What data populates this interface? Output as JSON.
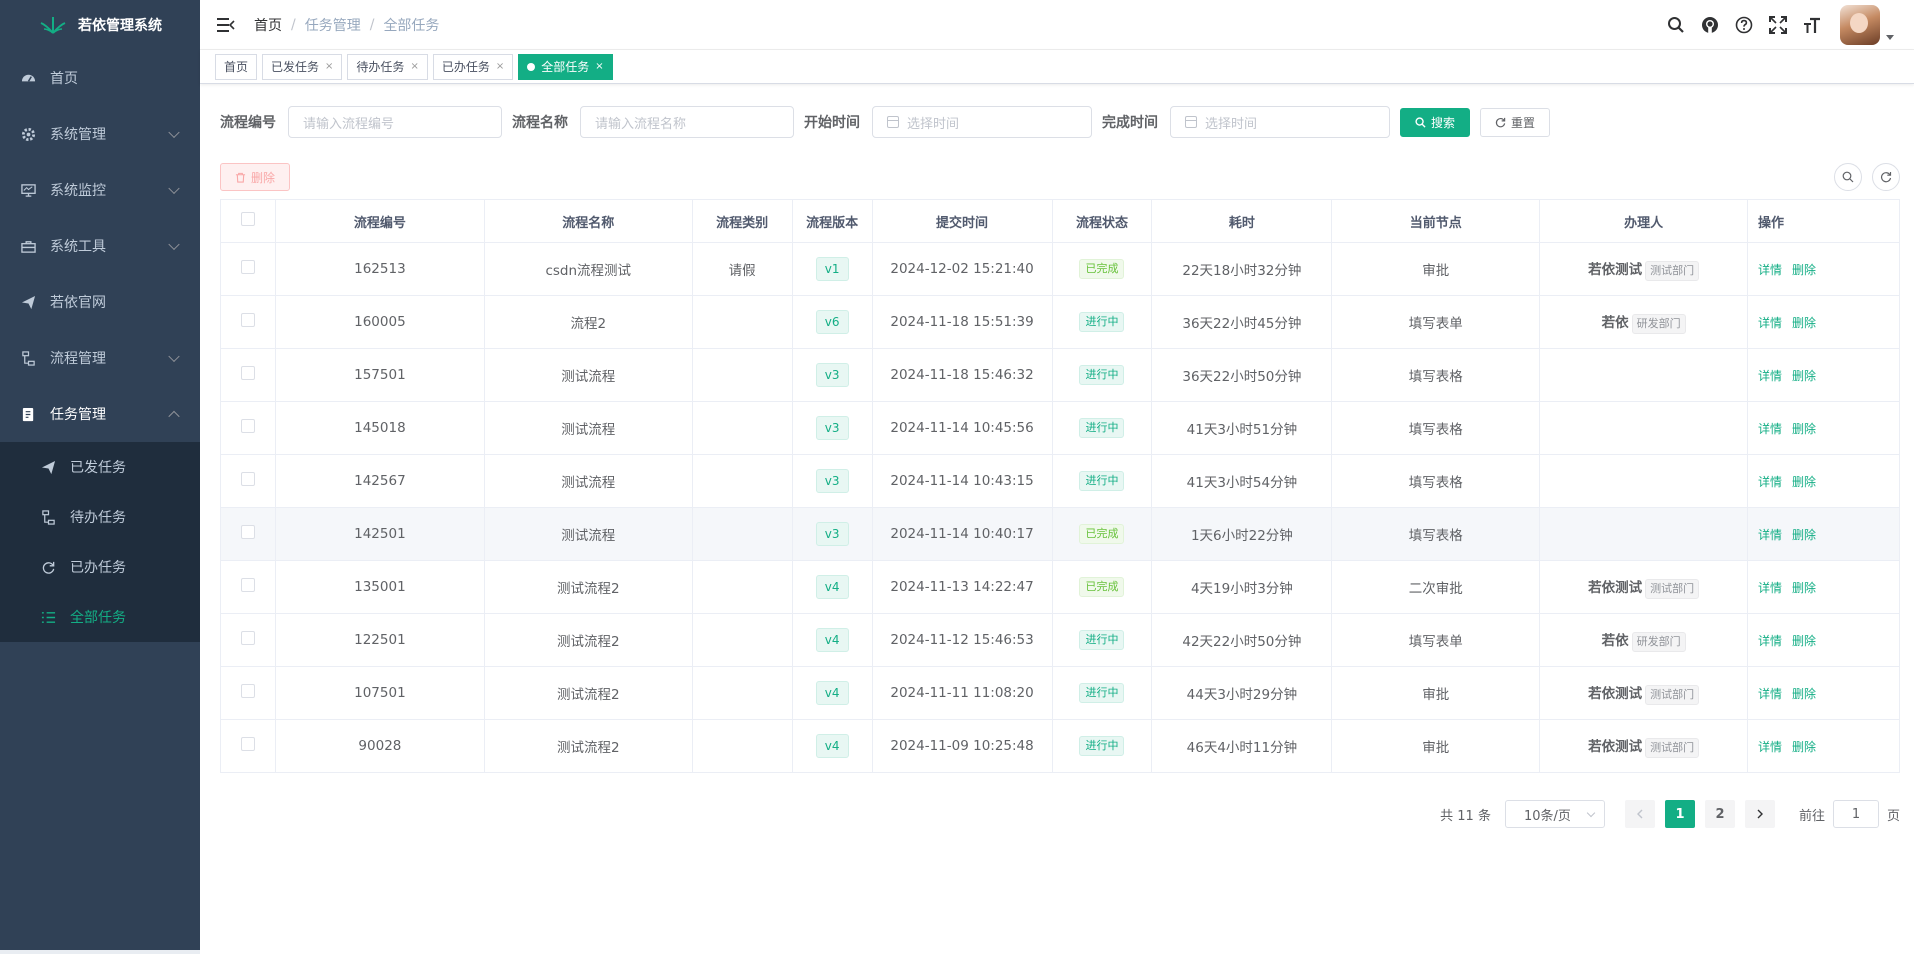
{
  "app": {
    "title": "若依管理系统"
  },
  "sidebar": {
    "items": [
      {
        "label": "首页",
        "icon": "dashboard-icon",
        "expandable": false
      },
      {
        "label": "系统管理",
        "icon": "gear-icon",
        "expandable": true
      },
      {
        "label": "系统监控",
        "icon": "monitor-icon",
        "expandable": true
      },
      {
        "label": "系统工具",
        "icon": "toolbox-icon",
        "expandable": true
      },
      {
        "label": "若依官网",
        "icon": "send-icon",
        "expandable": false
      },
      {
        "label": "流程管理",
        "icon": "flow-icon",
        "expandable": true
      },
      {
        "label": "任务管理",
        "icon": "task-icon",
        "expandable": true,
        "expanded": true
      }
    ],
    "subitems": [
      {
        "label": "已发任务",
        "icon": "send-icon"
      },
      {
        "label": "待办任务",
        "icon": "flow-icon"
      },
      {
        "label": "已办任务",
        "icon": "refresh-icon"
      },
      {
        "label": "全部任务",
        "icon": "list-icon",
        "active": true
      }
    ]
  },
  "breadcrumb": [
    "首页",
    "任务管理",
    "全部任务"
  ],
  "tags": [
    {
      "label": "首页",
      "closable": false
    },
    {
      "label": "已发任务",
      "closable": true
    },
    {
      "label": "待办任务",
      "closable": true
    },
    {
      "label": "已办任务",
      "closable": true
    },
    {
      "label": "全部任务",
      "closable": true,
      "active": true
    }
  ],
  "search": {
    "proc_no_label": "流程编号",
    "proc_no_placeholder": "请输入流程编号",
    "proc_name_label": "流程名称",
    "proc_name_placeholder": "请输入流程名称",
    "start_label": "开始时间",
    "start_placeholder": "选择时间",
    "finish_label": "完成时间",
    "finish_placeholder": "选择时间",
    "search_btn": "搜索",
    "reset_btn": "重置"
  },
  "toolbar": {
    "delete_btn": "删除"
  },
  "table": {
    "columns": [
      "流程编号",
      "流程名称",
      "流程类别",
      "流程版本",
      "提交时间",
      "流程状态",
      "耗时",
      "当前节点",
      "办理人",
      "操作"
    ],
    "detail_label": "详情",
    "delete_label": "删除",
    "rows": [
      {
        "no": "162513",
        "name": "csdn流程测试",
        "category": "请假",
        "version": "v1",
        "time": "2024-12-02 15:21:40",
        "status": "已完成",
        "status_type": "done",
        "duration": "22天18小时32分钟",
        "node": "审批",
        "assignee": "若依测试",
        "dept": "测试部门"
      },
      {
        "no": "160005",
        "name": "流程2",
        "category": "",
        "version": "v6",
        "time": "2024-11-18 15:51:39",
        "status": "进行中",
        "status_type": "doing",
        "duration": "36天22小时45分钟",
        "node": "填写表单",
        "assignee": "若依",
        "dept": "研发部门"
      },
      {
        "no": "157501",
        "name": "测试流程",
        "category": "",
        "version": "v3",
        "time": "2024-11-18 15:46:32",
        "status": "进行中",
        "status_type": "doing",
        "duration": "36天22小时50分钟",
        "node": "填写表格",
        "assignee": "",
        "dept": ""
      },
      {
        "no": "145018",
        "name": "测试流程",
        "category": "",
        "version": "v3",
        "time": "2024-11-14 10:45:56",
        "status": "进行中",
        "status_type": "doing",
        "duration": "41天3小时51分钟",
        "node": "填写表格",
        "assignee": "",
        "dept": ""
      },
      {
        "no": "142567",
        "name": "测试流程",
        "category": "",
        "version": "v3",
        "time": "2024-11-14 10:43:15",
        "status": "进行中",
        "status_type": "doing",
        "duration": "41天3小时54分钟",
        "node": "填写表格",
        "assignee": "",
        "dept": ""
      },
      {
        "no": "142501",
        "name": "测试流程",
        "category": "",
        "version": "v3",
        "time": "2024-11-14 10:40:17",
        "status": "已完成",
        "status_type": "done",
        "duration": "1天6小时22分钟",
        "node": "填写表格",
        "assignee": "",
        "dept": "",
        "hover": true
      },
      {
        "no": "135001",
        "name": "测试流程2",
        "category": "",
        "version": "v4",
        "time": "2024-11-13 14:22:47",
        "status": "已完成",
        "status_type": "done",
        "duration": "4天19小时3分钟",
        "node": "二次审批",
        "assignee": "若依测试",
        "dept": "测试部门"
      },
      {
        "no": "122501",
        "name": "测试流程2",
        "category": "",
        "version": "v4",
        "time": "2024-11-12 15:46:53",
        "status": "进行中",
        "status_type": "doing",
        "duration": "42天22小时50分钟",
        "node": "填写表单",
        "assignee": "若依",
        "dept": "研发部门"
      },
      {
        "no": "107501",
        "name": "测试流程2",
        "category": "",
        "version": "v4",
        "time": "2024-11-11 11:08:20",
        "status": "进行中",
        "status_type": "doing",
        "duration": "44天3小时29分钟",
        "node": "审批",
        "assignee": "若依测试",
        "dept": "测试部门"
      },
      {
        "no": "90028",
        "name": "测试流程2",
        "category": "",
        "version": "v4",
        "time": "2024-11-09 10:25:48",
        "status": "进行中",
        "status_type": "doing",
        "duration": "46天4小时11分钟",
        "node": "审批",
        "assignee": "若依测试",
        "dept": "测试部门"
      }
    ]
  },
  "pagination": {
    "total": "共 11 条",
    "page_size": "10条/页",
    "pages": [
      "1",
      "2"
    ],
    "current": "1",
    "goto_prefix": "前往",
    "goto_value": "1",
    "goto_suffix": "页"
  },
  "colors": {
    "primary": "#13ae85",
    "sidebar_bg": "#304156",
    "submenu_bg": "#1f2d3d",
    "success": "#67c23a"
  }
}
